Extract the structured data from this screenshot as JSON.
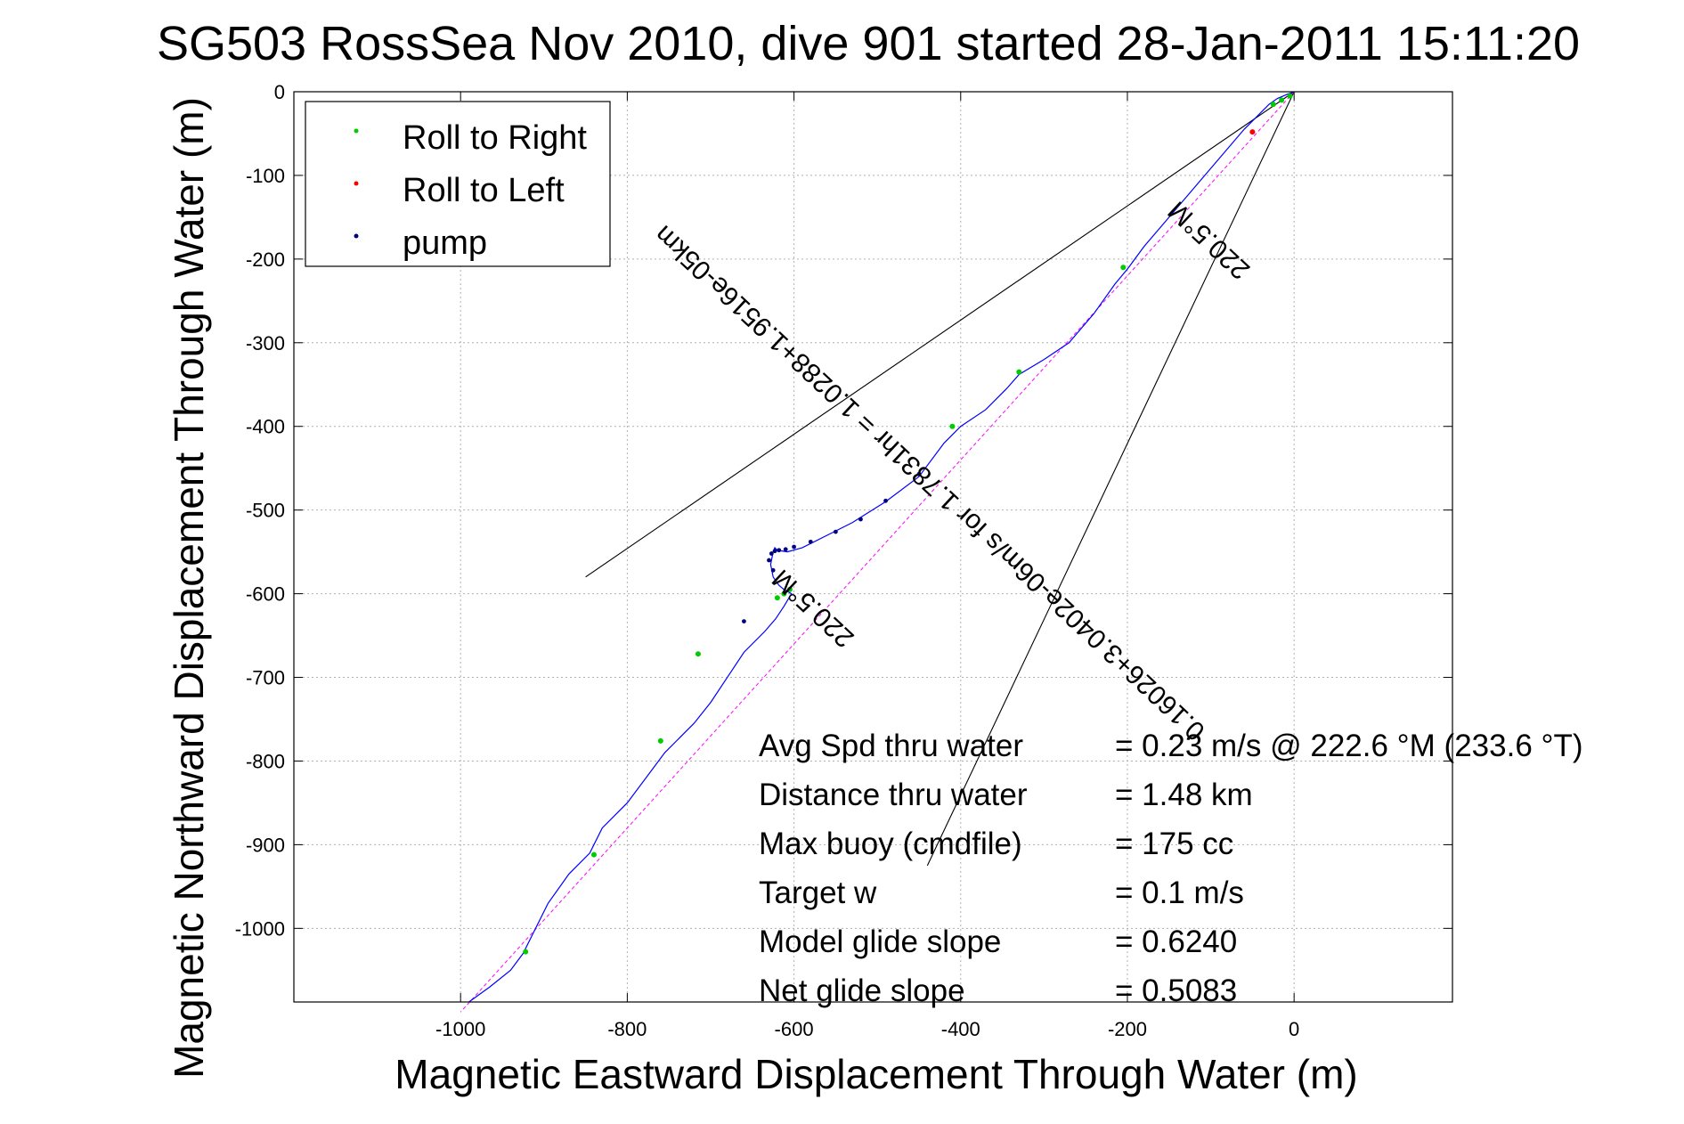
{
  "chart_data": {
    "type": "line",
    "title": "SG503 RossSea Nov 2010, dive 901 started 28-Jan-2011 15:11:20",
    "xlabel": "Magnetic Eastward Displacement Through Water (m)",
    "ylabel": "Magnetic Northward Displacement Through Water (m)",
    "xlim": [
      -1200,
      190
    ],
    "ylim": [
      -1088,
      0
    ],
    "x_ticks": [
      -1000,
      -800,
      -600,
      -400,
      -200,
      0
    ],
    "x_tick_labels": [
      "-1000",
      "-800",
      "-600",
      "-400",
      "-200",
      "0"
    ],
    "y_ticks": [
      0,
      -100,
      -200,
      -300,
      -400,
      -500,
      -600,
      -700,
      -800,
      -900,
      -1000
    ],
    "y_tick_labels": [
      "0",
      "-100",
      "-200",
      "-300",
      "-400",
      "-500",
      "-600",
      "-700",
      "-800",
      "-900",
      "-1000"
    ],
    "grid": true,
    "legend_position": "top-left",
    "legend": [
      {
        "label": "Roll to Right",
        "color": "#00cc00"
      },
      {
        "label": "Roll to Left",
        "color": "#ff0000"
      },
      {
        "label": "pump",
        "color": "#000080"
      }
    ],
    "track_color": "#0000ff",
    "track": {
      "x": [
        0,
        -8,
        -20,
        -30,
        -40,
        -60,
        -90,
        -120,
        -150,
        -180,
        -200,
        -215,
        -240,
        -270,
        -300,
        -330,
        -345,
        -370,
        -400,
        -420,
        -450,
        -490,
        -530,
        -560,
        -590,
        -608,
        -620,
        -623,
        -625,
        -628,
        -625,
        -618,
        -612,
        -603,
        -612,
        -622,
        -635,
        -660,
        -680,
        -700,
        -720,
        -740,
        -755,
        -770,
        -800,
        -830,
        -845,
        -870,
        -895,
        -915,
        -925,
        -940,
        -965,
        -990
      ],
      "y": [
        0,
        -3,
        -8,
        -15,
        -25,
        -45,
        -80,
        -115,
        -150,
        -185,
        -212,
        -230,
        -265,
        -300,
        -320,
        -338,
        -355,
        -380,
        -400,
        -420,
        -460,
        -490,
        -515,
        -530,
        -545,
        -550,
        -548,
        -545,
        -550,
        -565,
        -580,
        -590,
        -595,
        -600,
        -615,
        -630,
        -645,
        -670,
        -700,
        -730,
        -755,
        -775,
        -790,
        -810,
        -850,
        -880,
        -910,
        -935,
        -970,
        -1010,
        -1030,
        -1050,
        -1070,
        -1088
      ]
    },
    "roll_right_points": {
      "x": [
        -5,
        -15,
        -25,
        -205,
        -330,
        -410,
        -605,
        -612,
        -620,
        -715,
        -760,
        -840,
        -922
      ],
      "y": [
        -5,
        -10,
        -15,
        -210,
        -335,
        -400,
        -595,
        -600,
        -605,
        -672,
        -776,
        -912,
        -1028
      ]
    },
    "roll_left_points": {
      "x": [
        -50
      ],
      "y": [
        -48
      ]
    },
    "pump_points": {
      "x": [
        -450,
        -490,
        -520,
        -550,
        -580,
        -600,
        -610,
        -618,
        -623,
        -627,
        -630,
        -625,
        -660
      ],
      "y": [
        -457,
        -489,
        -511,
        -526,
        -538,
        -544,
        -547,
        -548,
        -549,
        -552,
        -560,
        -572,
        -633
      ]
    },
    "heading_line": {
      "x": [
        0,
        -1000
      ],
      "y": [
        0,
        -1100
      ],
      "color": "#ff00ff"
    },
    "cone_lines": [
      {
        "x": [
          0,
          -850
        ],
        "y": [
          0,
          -580
        ]
      },
      {
        "x": [
          0,
          -440
        ],
        "y": [
          0,
          -925
        ]
      }
    ],
    "rotated_annotations": [
      {
        "text": "0.16026+3.0402e-06m/s for 1.7831hr = 1.0288+1.9516e-05km",
        "x": -430,
        "y": -460,
        "angle_deg": -137
      },
      {
        "text": "220.5°M",
        "x": -95,
        "y": -170,
        "angle_deg": -137
      },
      {
        "text": "220.5°M",
        "x": -570,
        "y": -610,
        "angle_deg": -137
      }
    ],
    "stats": [
      {
        "label": "Avg Spd thru water",
        "value": "=  0.23 m/s @ 222.6 °M (233.6 °T)"
      },
      {
        "label": "Distance thru water",
        "value": "=  1.48 km"
      },
      {
        "label": "Max buoy (cmdfile)",
        "value": "= 175 cc"
      },
      {
        "label": "Target w",
        "value": "= 0.1 m/s"
      },
      {
        "label": "Model glide slope",
        "value": "= 0.6240"
      },
      {
        "label": "Net glide slope",
        "value": "= 0.5083"
      }
    ]
  }
}
